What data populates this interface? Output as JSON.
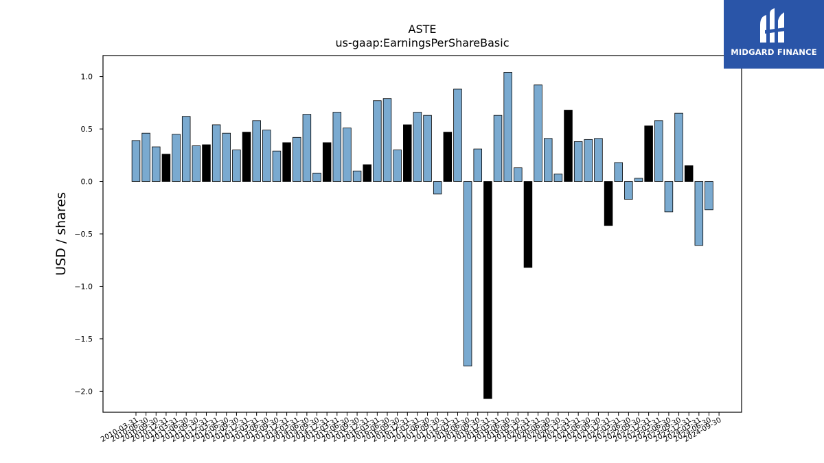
{
  "chart_data": {
    "type": "bar",
    "title": "ASTE",
    "subtitle": "us-gaap:EarningsPerShareBasic",
    "xlabel": "",
    "ylabel": "USD / shares",
    "ylim": [
      -2.2,
      1.2
    ],
    "yticks": [
      1.0,
      0.5,
      0.0,
      -0.5,
      -1.0,
      -1.5,
      -2.0
    ],
    "ytick_labels": [
      "1.0",
      "0.5",
      "0.0",
      "−0.5",
      "−1.0",
      "−1.5",
      "−2.0"
    ],
    "grid": false,
    "legend": "none",
    "colors": {
      "quarter": "#7aaad0",
      "annual": "#000000",
      "edge": "#000000"
    },
    "categories": [
      "2010-03-31",
      "2010-06-30",
      "2010-09-30",
      "2010-12-31",
      "2011-03-31",
      "2011-06-30",
      "2011-09-30",
      "2011-12-31",
      "2012-03-31",
      "2012-06-30",
      "2012-09-30",
      "2012-12-31",
      "2013-03-31",
      "2013-06-30",
      "2013-09-30",
      "2013-12-31",
      "2014-03-31",
      "2014-06-30",
      "2014-09-30",
      "2014-12-31",
      "2015-03-31",
      "2015-06-30",
      "2015-09-30",
      "2015-12-31",
      "2016-03-31",
      "2016-06-30",
      "2016-09-30",
      "2016-12-31",
      "2017-03-31",
      "2017-06-30",
      "2017-09-30",
      "2017-12-31",
      "2018-03-31",
      "2018-06-30",
      "2018-09-30",
      "2018-12-31",
      "2019-03-31",
      "2019-06-30",
      "2019-09-30",
      "2019-12-31",
      "2020-03-31",
      "2020-06-30",
      "2020-09-30",
      "2020-12-31",
      "2021-03-31",
      "2021-06-30",
      "2021-09-30",
      "2021-12-31",
      "2022-03-31",
      "2022-06-30",
      "2022-09-30",
      "2022-12-31",
      "2023-03-31",
      "2023-06-30",
      "2023-09-30",
      "2023-12-31",
      "2024-03-31",
      "2024-06-30",
      "2024-09-30"
    ],
    "values": [
      0.39,
      0.46,
      0.33,
      0.26,
      0.45,
      0.62,
      0.34,
      0.35,
      0.54,
      0.46,
      0.3,
      0.47,
      0.58,
      0.49,
      0.29,
      0.37,
      0.42,
      0.64,
      0.08,
      0.37,
      0.66,
      0.51,
      0.1,
      0.16,
      0.77,
      0.79,
      0.3,
      0.54,
      0.66,
      0.63,
      -0.12,
      0.47,
      0.88,
      -1.76,
      0.31,
      -2.07,
      0.63,
      1.04,
      0.13,
      -0.82,
      0.92,
      0.41,
      0.07,
      0.68,
      0.38,
      0.4,
      0.41,
      -0.42,
      0.18,
      -0.17,
      0.03,
      0.53,
      0.58,
      -0.29,
      0.65,
      0.15,
      -0.61,
      -0.27,
      null
    ],
    "annual": [
      false,
      false,
      false,
      true,
      false,
      false,
      false,
      true,
      false,
      false,
      false,
      true,
      false,
      false,
      false,
      true,
      false,
      false,
      false,
      true,
      false,
      false,
      false,
      true,
      false,
      false,
      false,
      true,
      false,
      false,
      false,
      true,
      false,
      false,
      false,
      true,
      false,
      false,
      false,
      true,
      false,
      false,
      false,
      true,
      false,
      false,
      false,
      true,
      false,
      false,
      false,
      true,
      false,
      false,
      false,
      true,
      false,
      false,
      false
    ]
  },
  "logo": {
    "text": "MIDGARD FINANCE",
    "color": "#2a55a8"
  }
}
